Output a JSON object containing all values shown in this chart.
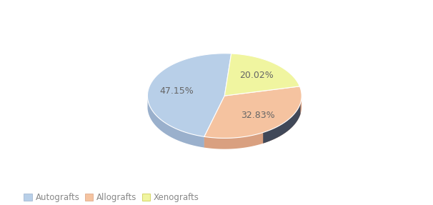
{
  "labels": [
    "Autografts",
    "Allografts",
    "Xenografts"
  ],
  "values": [
    47.15,
    32.83,
    20.02
  ],
  "colors": [
    "#b8cfe8",
    "#f5c3a0",
    "#f0f5a0"
  ],
  "edge_colors": [
    "#9ab0cc",
    "#d9a080",
    "#d0d580"
  ],
  "shadow_colors": [
    "#8099b0",
    "#c08060",
    "#a0a050"
  ],
  "dark_shadow": "#404858",
  "percentages": [
    "47.15%",
    "32.83%",
    "20.02%"
  ],
  "startangle": 85,
  "background_color": "#ffffff",
  "legend_fontsize": 8.5,
  "pct_fontsize": 9,
  "pct_color": "#666666"
}
